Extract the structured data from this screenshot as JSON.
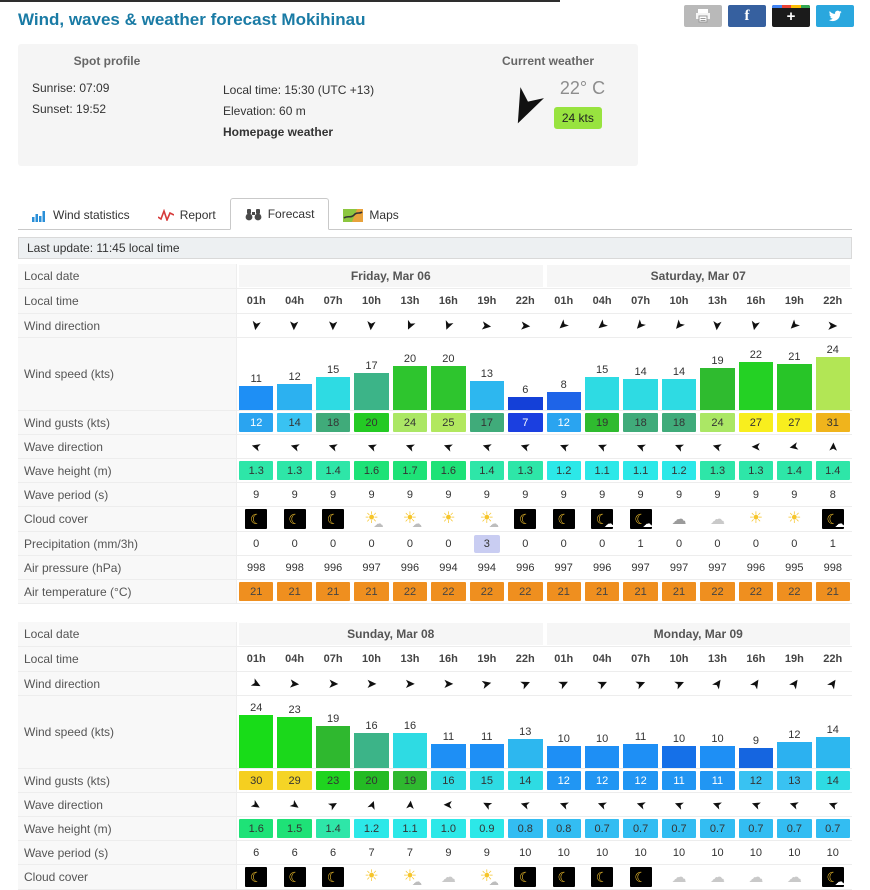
{
  "header": {
    "title": "Wind, waves & weather forecast Mokihinau",
    "social_buttons": [
      "print-button",
      "facebook-button",
      "googleplus-button",
      "twitter-button"
    ]
  },
  "spot_profile": {
    "col1_title": "Spot profile",
    "sunrise": "Sunrise: 07:09",
    "sunset": "Sunset: 19:52",
    "local_time": "Local time: 15:30 (UTC +13)",
    "elevation": "Elevation: 60 m",
    "homepage_label": "Homepage weather",
    "current_title": "Current weather",
    "current_temp": "22° C",
    "current_wind": "24 kts",
    "current_wind_badge_color": "#98e33f",
    "current_wind_arrow_deg": 115
  },
  "tabs": [
    {
      "label": "Wind statistics",
      "icon": "bar-chart-icon",
      "active": false
    },
    {
      "label": "Report",
      "icon": "pulse-line-icon",
      "active": false
    },
    {
      "label": "Forecast",
      "icon": "binoculars-icon",
      "active": true
    },
    {
      "label": "Maps",
      "icon": "map-icon",
      "active": false
    }
  ],
  "last_update": "Last update: 11:45 local time",
  "row_labels": {
    "date": "Local date",
    "time": "Local time",
    "wind_dir": "Wind direction",
    "wind_speed": "Wind speed (kts)",
    "wind_gusts": "Wind gusts (kts)",
    "wave_dir": "Wave direction",
    "wave_height": "Wave height (m)",
    "wave_period": "Wave period (s)",
    "clouds": "Cloud cover",
    "precip": "Precipitation (mm/3h)",
    "pressure": "Air pressure (hPa)",
    "temp": "Air temperature (°C)"
  },
  "times": [
    "01h",
    "04h",
    "07h",
    "10h",
    "13h",
    "16h",
    "19h",
    "22h",
    "01h",
    "04h",
    "07h",
    "10h",
    "13h",
    "16h",
    "19h",
    "22h"
  ],
  "tables": [
    {
      "days": [
        "Friday, Mar 06",
        "Saturday, Mar 07"
      ],
      "rows": [
        "dates",
        "times",
        "wind_dir",
        "wind_speed",
        "wind_gusts",
        "wave_dir",
        "wave_height",
        "wave_period",
        "clouds",
        "precip",
        "pressure",
        "temp"
      ],
      "wind_dir_deg": [
        100,
        92,
        92,
        95,
        115,
        112,
        8,
        5,
        138,
        140,
        132,
        130,
        95,
        102,
        135,
        2
      ],
      "wind_speed": {
        "values": [
          11,
          12,
          15,
          17,
          20,
          20,
          13,
          6,
          8,
          15,
          14,
          14,
          19,
          22,
          21,
          24
        ],
        "colors": [
          "#1e8ff5",
          "#2cb1f0",
          "#2edbe3",
          "#3cb488",
          "#2ec52e",
          "#2ec52e",
          "#2db7ef",
          "#1440d8",
          "#1e64e8",
          "#2edbe3",
          "#2edbe3",
          "#2edbe3",
          "#2fbb2f",
          "#24d124",
          "#28c528",
          "#b2e655"
        ]
      },
      "wind_gusts": {
        "values": [
          12,
          14,
          18,
          20,
          24,
          25,
          17,
          7,
          12,
          19,
          18,
          18,
          24,
          27,
          27,
          31
        ],
        "colors": [
          "#2aa4f0",
          "#39c2f2",
          "#40ab7a",
          "#24ca24",
          "#abe765",
          "#b2e85f",
          "#40ab7a",
          "#1b3fe0",
          "#2aa4f0",
          "#2fbb2f",
          "#40ab7a",
          "#40ab7a",
          "#abe765",
          "#f8ee1e",
          "#f8ee1e",
          "#f0b41c"
        ],
        "white_text": [
          0,
          7,
          8
        ]
      },
      "wave_dir_deg": [
        196,
        197,
        198,
        200,
        200,
        200,
        198,
        198,
        202,
        203,
        201,
        203,
        197,
        181,
        168,
        272
      ],
      "wave_height": {
        "values": [
          "1.3",
          "1.3",
          "1.4",
          "1.6",
          "1.7",
          "1.6",
          "1.4",
          "1.3",
          "1.2",
          "1.1",
          "1.1",
          "1.2",
          "1.3",
          "1.3",
          "1.4",
          "1.4"
        ],
        "colors": [
          "#2ee6a8",
          "#2ee6a8",
          "#2ee6a8",
          "#1ee277",
          "#1ee277",
          "#1ee277",
          "#2ee6a8",
          "#2ee6a8",
          "#2ce8e8",
          "#2ce8e8",
          "#2ce8e8",
          "#2ce8e8",
          "#2ee6a8",
          "#2ee6a8",
          "#2ee6a8",
          "#2ee6a8"
        ]
      },
      "wave_period": [
        9,
        9,
        9,
        9,
        9,
        9,
        9,
        9,
        9,
        9,
        9,
        9,
        9,
        9,
        9,
        8
      ],
      "clouds": [
        "moon",
        "moon",
        "moon",
        "sun-cloud",
        "sun-cloud",
        "sun",
        "sun-cloud",
        "moon",
        "moon",
        "moon-cloud",
        "moon-cloud",
        "cloud-gray",
        "cloud-outline",
        "sun",
        "sun",
        "moon-cloud"
      ],
      "precip": {
        "values": [
          0,
          0,
          0,
          0,
          0,
          0,
          3,
          0,
          0,
          0,
          1,
          0,
          0,
          0,
          0,
          1
        ],
        "highlighted": [
          6
        ],
        "highlight_color": "#c9cdf2"
      },
      "pressure": [
        998,
        998,
        996,
        997,
        996,
        994,
        994,
        996,
        997,
        996,
        997,
        997,
        997,
        996,
        995,
        998
      ],
      "temp": {
        "values": [
          21,
          21,
          21,
          21,
          22,
          22,
          22,
          22,
          21,
          21,
          21,
          21,
          22,
          22,
          22,
          21
        ],
        "color": "#ef8f1f"
      }
    },
    {
      "days": [
        "Sunday, Mar 08",
        "Monday, Mar 09"
      ],
      "rows": [
        "dates",
        "times",
        "wind_dir",
        "wind_speed",
        "wind_gusts",
        "wave_dir",
        "wave_height",
        "wave_period",
        "clouds"
      ],
      "wind_dir_deg": [
        28,
        6,
        2,
        0,
        0,
        0,
        -14,
        -24,
        -26,
        -25,
        -22,
        -24,
        -55,
        -57,
        -55,
        -56
      ],
      "wind_speed": {
        "values": [
          24,
          23,
          19,
          16,
          16,
          11,
          11,
          13,
          10,
          10,
          11,
          10,
          10,
          9,
          12,
          14
        ],
        "colors": [
          "#18dc18",
          "#1bd81b",
          "#2fb82f",
          "#3cb488",
          "#2edbe3",
          "#1e8ff5",
          "#1e8ff5",
          "#2db7ef",
          "#1e8ff5",
          "#1e8ff5",
          "#1e8ff5",
          "#1570e8",
          "#1e8ff5",
          "#1565e0",
          "#2cb1f0",
          "#2db7ef"
        ]
      },
      "wind_gusts": {
        "values": [
          30,
          29,
          23,
          20,
          19,
          16,
          15,
          14,
          12,
          12,
          12,
          11,
          11,
          12,
          13,
          14
        ],
        "colors": [
          "#f5cf20",
          "#f5d426",
          "#1fd41f",
          "#24bb24",
          "#2fb82f",
          "#2edbe3",
          "#2edbe3",
          "#2edbe3",
          "#2196f3",
          "#2196f3",
          "#2196f3",
          "#2196f3",
          "#2196f3",
          "#39c2f2",
          "#39c2f2",
          "#2edbe3"
        ],
        "white_text": [
          8,
          9,
          10,
          11,
          12
        ]
      },
      "wave_dir_deg": [
        32,
        35,
        -30,
        -70,
        -85,
        181,
        207,
        197,
        200,
        200,
        198,
        201,
        200,
        200,
        198,
        201
      ],
      "wave_height": {
        "values": [
          "1.6",
          "1.5",
          "1.4",
          "1.2",
          "1.1",
          "1.0",
          "0.9",
          "0.8",
          "0.8",
          "0.7",
          "0.7",
          "0.7",
          "0.7",
          "0.7",
          "0.7",
          "0.7"
        ],
        "colors": [
          "#1ee277",
          "#1ee277",
          "#2ee6a8",
          "#2ce8e8",
          "#2ce8e8",
          "#2ce8e8",
          "#2ce8e8",
          "#33bdf2",
          "#33bdf2",
          "#33bdf2",
          "#33bdf2",
          "#33bdf2",
          "#33bdf2",
          "#33bdf2",
          "#33bdf2",
          "#33bdf2"
        ]
      },
      "wave_period": [
        6,
        6,
        6,
        7,
        7,
        9,
        9,
        10,
        10,
        10,
        10,
        10,
        10,
        10,
        10,
        10
      ],
      "clouds": [
        "moon",
        "moon",
        "moon",
        "sun",
        "sun-cloud",
        "cloud-outline",
        "sun-cloud",
        "moon",
        "moon",
        "moon",
        "moon",
        "cloud-outline",
        "cloud-outline",
        "cloud-outline",
        "cloud-outline",
        "moon-cloud"
      ]
    }
  ]
}
